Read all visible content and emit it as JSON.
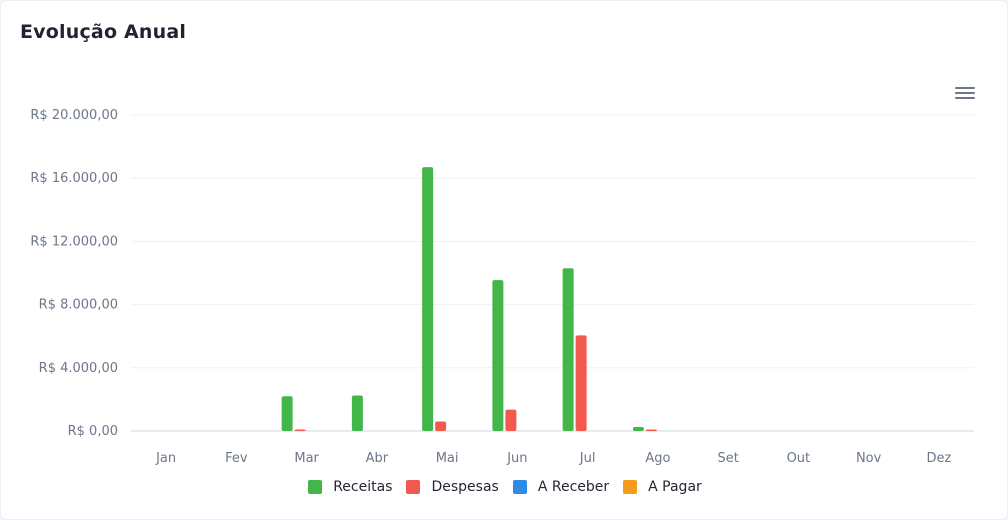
{
  "title": "Evolução Anual",
  "menu_icon": "hamburger-menu-icon",
  "chart_data": {
    "type": "bar",
    "categories": [
      "Jan",
      "Fev",
      "Mar",
      "Abr",
      "Mai",
      "Jun",
      "Jul",
      "Ago",
      "Set",
      "Out",
      "Nov",
      "Dez"
    ],
    "series": [
      {
        "name": "Receitas",
        "color": "#43b649",
        "values": [
          0,
          0,
          2200,
          2250,
          16700,
          9550,
          10300,
          250,
          0,
          0,
          0,
          0
        ]
      },
      {
        "name": "Despesas",
        "color": "#f2594f",
        "values": [
          0,
          0,
          70,
          0,
          600,
          1350,
          6050,
          80,
          0,
          0,
          0,
          0
        ]
      },
      {
        "name": "A Receber",
        "color": "#2d8ae6",
        "values": [
          0,
          0,
          0,
          0,
          0,
          0,
          0,
          0,
          0,
          0,
          0,
          0
        ]
      },
      {
        "name": "A Pagar",
        "color": "#f59a1b",
        "values": [
          0,
          0,
          0,
          0,
          0,
          0,
          0,
          0,
          0,
          0,
          0,
          0
        ]
      }
    ],
    "ylim": [
      0,
      20000
    ],
    "yticks": [
      0,
      4000,
      8000,
      12000,
      16000,
      20000
    ],
    "ytick_labels": [
      "R$ 0,00",
      "R$ 4.000,00",
      "R$ 8.000,00",
      "R$ 12.000,00",
      "R$ 16.000,00",
      "R$ 20.000,00"
    ],
    "grid": true,
    "legend_position": "bottom-center"
  }
}
